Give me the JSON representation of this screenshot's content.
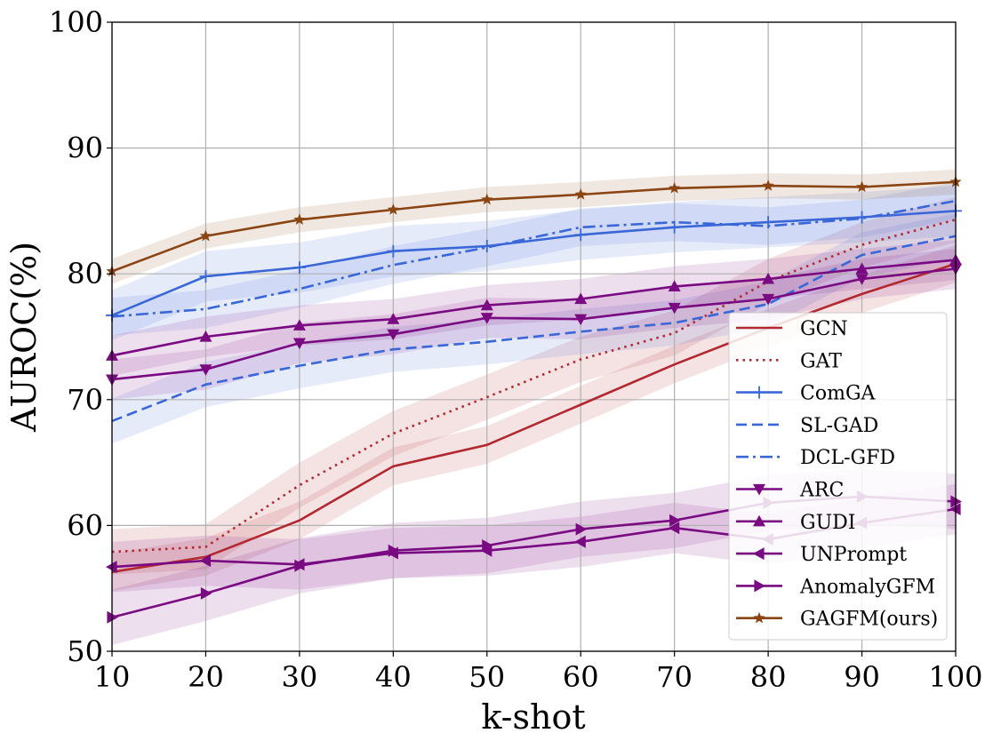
{
  "chart_data": {
    "type": "line",
    "title": "",
    "xlabel": "k-shot",
    "ylabel": "AUROC(%)",
    "xlim": [
      10,
      100
    ],
    "ylim": [
      50,
      100
    ],
    "xticks": [
      "10",
      "20",
      "30",
      "40",
      "50",
      "60",
      "70",
      "80",
      "90",
      "100"
    ],
    "yticks": [
      "50",
      "60",
      "70",
      "80",
      "90",
      "100"
    ],
    "grid": true,
    "legend_position": "lower-right",
    "x": [
      10,
      20,
      30,
      40,
      50,
      60,
      70,
      80,
      90,
      100
    ],
    "series": [
      {
        "name": "GCN",
        "color": "#b2282e",
        "dash": "solid",
        "marker": "none",
        "values": [
          56.3,
          57.5,
          60.4,
          64.7,
          66.4,
          69.6,
          72.8,
          75.7,
          78.4,
          80.8
        ],
        "band": 1.5
      },
      {
        "name": "GAT",
        "color": "#b2282e",
        "dash": "dotted",
        "marker": "none",
        "values": [
          57.9,
          58.3,
          63.2,
          67.3,
          70.2,
          73.2,
          75.3,
          79.4,
          82.3,
          84.3
        ],
        "band": 1.8
      },
      {
        "name": "ComGA",
        "color": "#3a67d8",
        "dash": "solid",
        "marker": "plus",
        "values": [
          76.7,
          79.8,
          80.5,
          81.8,
          82.2,
          83.1,
          83.7,
          84.1,
          84.5,
          85.0
        ],
        "band": 2.0
      },
      {
        "name": "SL-GAD",
        "color": "#3a67d8",
        "dash": "dashed",
        "marker": "none",
        "values": [
          68.3,
          71.2,
          72.7,
          74.0,
          74.6,
          75.4,
          76.1,
          77.6,
          81.5,
          83.0
        ],
        "band": 1.8
      },
      {
        "name": "DCL-GFD",
        "color": "#3a67d8",
        "dash": "dashdot",
        "marker": "none",
        "values": [
          76.6,
          77.2,
          78.8,
          80.7,
          82.1,
          83.7,
          84.1,
          83.8,
          84.4,
          85.8
        ],
        "band": 1.5
      },
      {
        "name": "ARC",
        "color": "#7a0a82",
        "dash": "solid",
        "marker": "tri-down",
        "values": [
          71.6,
          72.4,
          74.5,
          75.2,
          76.5,
          76.4,
          77.3,
          78.0,
          79.6,
          80.4
        ],
        "band": 1.6
      },
      {
        "name": "GUDI",
        "color": "#7a0a82",
        "dash": "solid",
        "marker": "tri-up",
        "values": [
          73.5,
          75.0,
          75.9,
          76.4,
          77.5,
          78.0,
          79.0,
          79.6,
          80.4,
          81.1
        ],
        "band": 1.6
      },
      {
        "name": "UNPrompt",
        "color": "#7a0a82",
        "dash": "solid",
        "marker": "tri-left",
        "values": [
          56.7,
          57.2,
          56.9,
          57.8,
          58.0,
          58.7,
          59.8,
          58.9,
          60.2,
          61.3
        ],
        "band": 2.0
      },
      {
        "name": "AnomalyGFM",
        "color": "#7a0a82",
        "dash": "solid",
        "marker": "tri-right",
        "values": [
          52.7,
          54.6,
          56.8,
          58.0,
          58.4,
          59.7,
          60.4,
          61.8,
          62.3,
          61.9
        ],
        "band": 2.2
      },
      {
        "name": "GAGFM(ours)",
        "color": "#8b4513",
        "dash": "solid",
        "marker": "star",
        "values": [
          80.2,
          83.0,
          84.3,
          85.1,
          85.9,
          86.3,
          86.8,
          87.0,
          86.9,
          87.3
        ],
        "band": 1.0
      }
    ]
  }
}
